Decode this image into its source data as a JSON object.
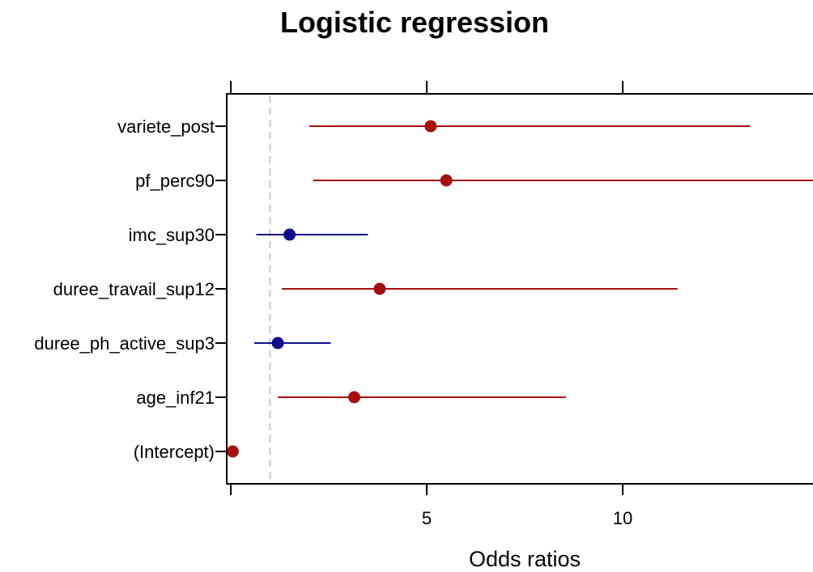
{
  "chart_data": {
    "type": "forest",
    "title": "Logistic regression",
    "xlabel": "Odds ratios",
    "ylabel": "",
    "xlim": [
      -0.1,
      14.8
    ],
    "x_ticks": [
      5,
      10
    ],
    "x_ticks_labels": [
      "5",
      "10"
    ],
    "top_ticks": [
      0,
      5,
      10
    ],
    "reference_line": 1,
    "legend": "none",
    "grid": false,
    "colors": {
      "positive": "#a50f0f",
      "negative": "#0d0d8c",
      "reference": "#c8c8c8"
    },
    "terms": [
      {
        "label": "variete_post",
        "estimate": 5.1,
        "ci_low": 2.0,
        "ci_high": 13.25,
        "direction": "positive"
      },
      {
        "label": "pf_perc90",
        "estimate": 5.5,
        "ci_low": 2.1,
        "ci_high": 15.5,
        "direction": "positive"
      },
      {
        "label": "imc_sup30",
        "estimate": 1.5,
        "ci_low": 0.65,
        "ci_high": 3.5,
        "direction": "negative"
      },
      {
        "label": "duree_travail_sup12",
        "estimate": 3.8,
        "ci_low": 1.3,
        "ci_high": 11.4,
        "direction": "positive"
      },
      {
        "label": "duree_ph_active_sup3",
        "estimate": 1.2,
        "ci_low": 0.6,
        "ci_high": 2.55,
        "direction": "negative"
      },
      {
        "label": "age_inf21",
        "estimate": 3.15,
        "ci_low": 1.2,
        "ci_high": 8.55,
        "direction": "positive"
      },
      {
        "label": "(Intercept)",
        "estimate": 0.05,
        "ci_low": 0.02,
        "ci_high": 0.12,
        "direction": "positive"
      }
    ]
  }
}
